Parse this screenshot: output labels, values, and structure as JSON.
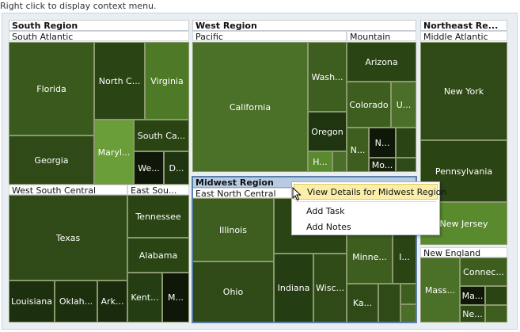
{
  "hint": "Right click to display context menu.",
  "colors": {
    "c1": "#2f4a17",
    "c2": "#3d5e1f",
    "c3": "#4b6e29",
    "c4": "#5a8a2e",
    "c5": "#6a9e38",
    "c6": "#1f3410",
    "c7": "#15220b",
    "c8": "#243d12"
  },
  "regions": {
    "south": {
      "title": "South Region",
      "sub1": "South Atlantic",
      "sub2": "West South Central",
      "sub3": "East Sou...",
      "states": {
        "florida": "Florida",
        "north_carolina": "North C...",
        "virginia": "Virginia",
        "georgia": "Georgia",
        "maryland": "Maryl...",
        "south_carolina": "South Ca...",
        "west_virginia": "We...",
        "delaware": "D...",
        "texas": "Texas",
        "louisiana": "Louisiana",
        "oklahoma": "Oklah...",
        "arkansas": "Ark...",
        "tennessee": "Tennessee",
        "alabama": "Alabama",
        "kentucky": "Kent...",
        "mississippi": "M..."
      }
    },
    "west": {
      "title": "West Region",
      "sub1": "Pacific",
      "sub2": "Mountain",
      "states": {
        "california": "California",
        "washington": "Wash...",
        "oregon": "Oregon",
        "hawaii": "H...",
        "arizona": "Arizona",
        "colorado": "Colorado",
        "utah": "U...",
        "nevada": "N...",
        "new_mexico": "N...",
        "montana": "Mo..."
      }
    },
    "midwest": {
      "title": "Midwest Region",
      "sub1": "East North Central",
      "states": {
        "illinois": "Illinois",
        "ohio": "Ohio",
        "indiana": "Indiana",
        "wisconsin": "Wisc...",
        "minnesota": "Minne...",
        "iowa": "I...",
        "kansas": "Ka..."
      }
    },
    "northeast": {
      "title": "Northeast Re...",
      "sub1": "Middle Atlantic",
      "sub2": "New England",
      "states": {
        "new_york": "New York",
        "pennsylvania": "Pennsylvania",
        "new_jersey": "New Jersey",
        "massachusetts": "Mass...",
        "connecticut": "Connec...",
        "maine": "Ma...",
        "new_hampshire": "Ne..."
      }
    }
  },
  "context_menu": {
    "items": [
      "View Details for Midwest Region",
      "Add Task",
      "Add Notes"
    ]
  }
}
